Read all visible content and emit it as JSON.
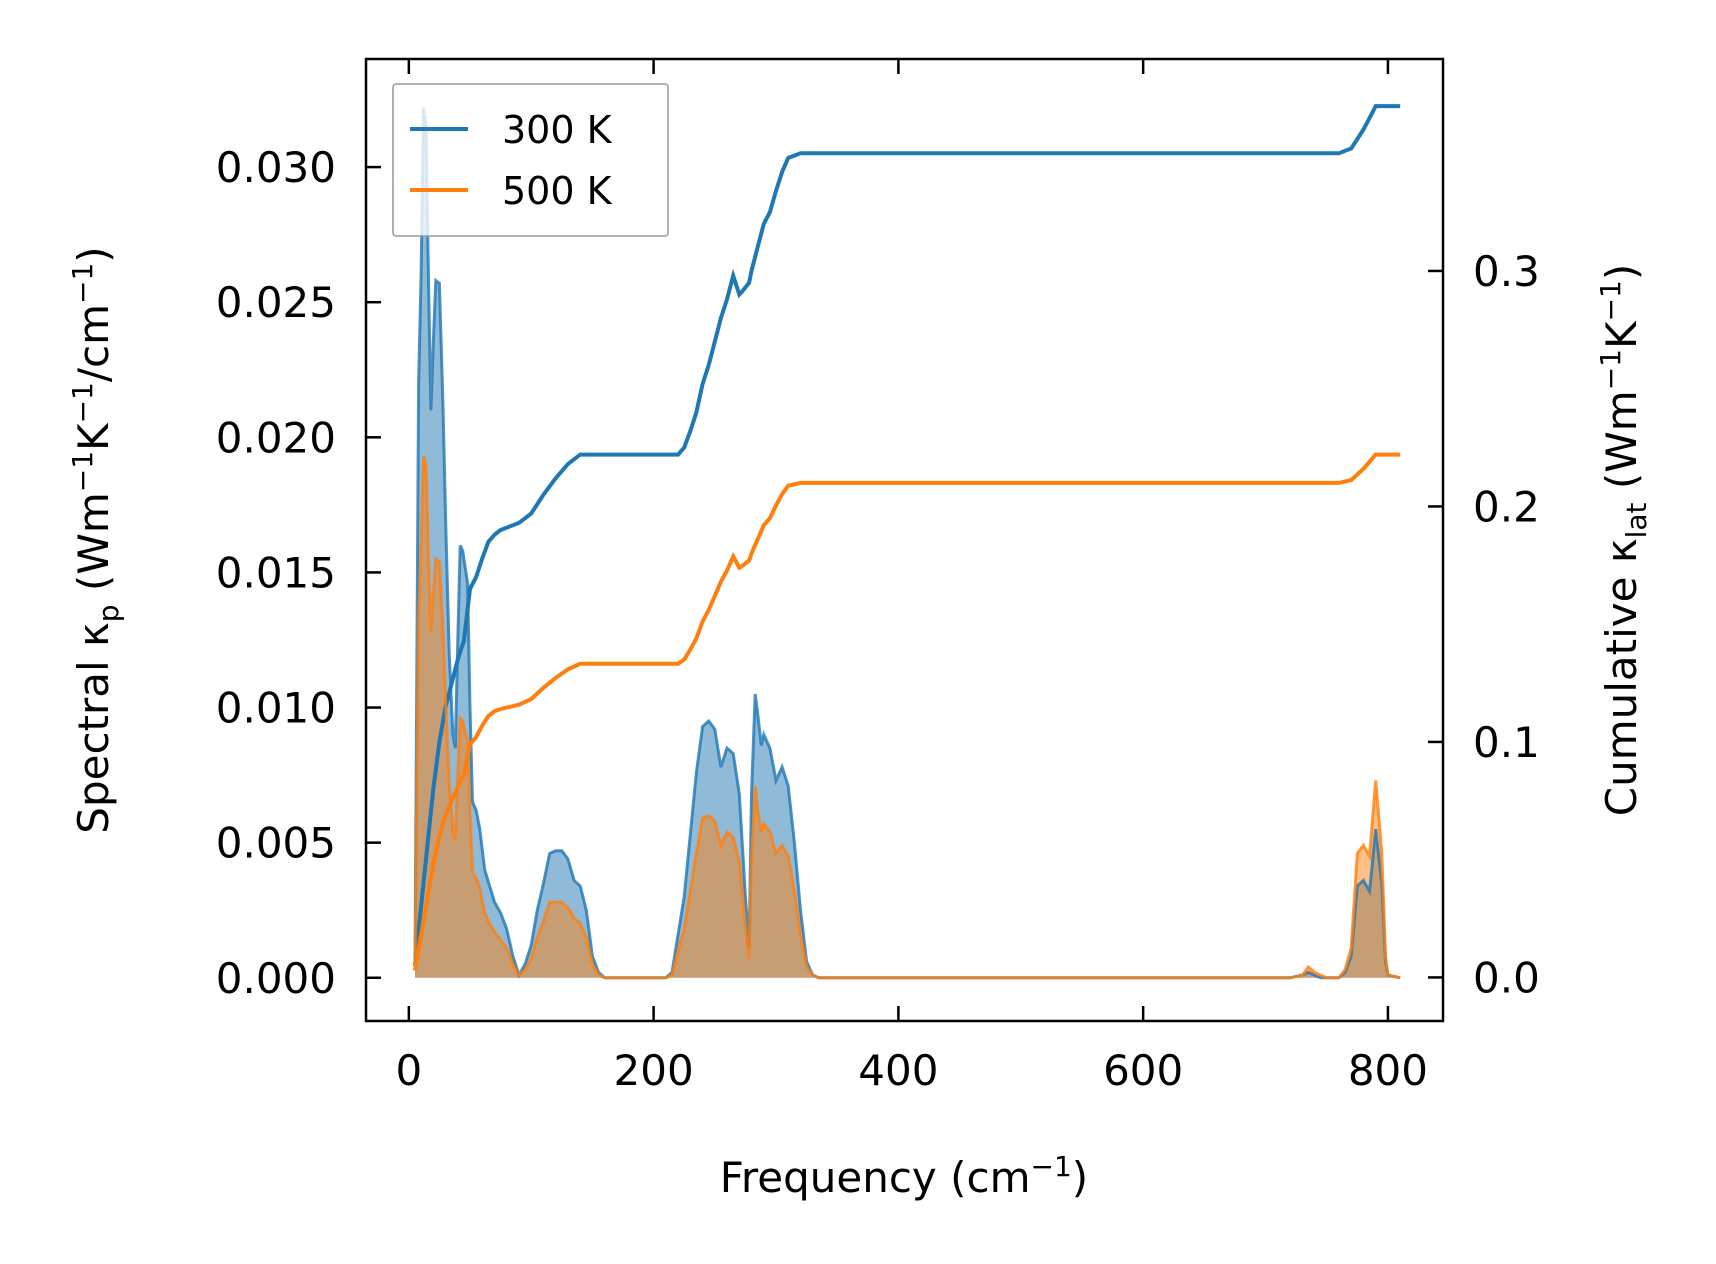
{
  "chart_data": {
    "type": "line",
    "xlabel": {
      "main": "Frequency (cm",
      "sup": "−1",
      "tail": ")"
    },
    "ylabel_left": {
      "pre": "Spectral κ",
      "sub": "p",
      "mid": " (Wm",
      "sup1": "−1",
      "k": "K",
      "sup2": "−1",
      "tail": "/cm",
      "sup3": "−1",
      "end": ")"
    },
    "ylabel_right": {
      "pre": "Cumulative κ",
      "sub": "lat",
      "mid": " (Wm",
      "sup1": "−1",
      "k": "K",
      "sup2": "−1",
      "end": ")"
    },
    "xlim": [
      -35,
      845
    ],
    "ylim_left": [
      -0.0016,
      0.034
    ],
    "ylim_right": [
      -0.0185,
      0.39
    ],
    "x_ticks": [
      0,
      200,
      400,
      600,
      800
    ],
    "x_tick_labels": [
      "0",
      "200",
      "400",
      "600",
      "800"
    ],
    "y_left_ticks": [
      0,
      0.005,
      0.01,
      0.015,
      0.02,
      0.025,
      0.03
    ],
    "y_left_tick_labels": [
      "0.000",
      "0.005",
      "0.010",
      "0.015",
      "0.020",
      "0.025",
      "0.030"
    ],
    "y_right_ticks": [
      0,
      0.1,
      0.2,
      0.3
    ],
    "y_right_tick_labels": [
      "0.0",
      "0.1",
      "0.2",
      "0.3"
    ],
    "legend": {
      "position": "upper-left",
      "entries": [
        "300 K",
        "500 K"
      ]
    },
    "grid": false,
    "series": [
      {
        "name": "300 K",
        "color": "#1f77b4",
        "spectral": {
          "x": [
            5,
            8,
            10,
            12,
            14,
            16,
            18,
            20,
            22,
            25,
            28,
            30,
            33,
            36,
            38,
            40,
            42,
            44,
            46,
            48,
            50,
            52,
            55,
            58,
            62,
            66,
            70,
            75,
            80,
            85,
            90,
            95,
            100,
            105,
            110,
            115,
            120,
            125,
            130,
            135,
            140,
            145,
            150,
            155,
            160,
            180,
            200,
            210,
            215,
            220,
            225,
            230,
            235,
            240,
            245,
            250,
            255,
            260,
            265,
            270,
            275,
            278,
            280,
            283,
            285,
            288,
            290,
            295,
            300,
            305,
            310,
            315,
            320,
            325,
            330,
            335,
            400,
            600,
            700,
            720,
            730,
            735,
            740,
            745,
            750,
            760,
            765,
            770,
            775,
            780,
            785,
            790,
            795,
            798,
            800,
            810
          ],
          "y": [
            0.0005,
            0.022,
            0.026,
            0.0322,
            0.0315,
            0.026,
            0.021,
            0.0235,
            0.0258,
            0.0257,
            0.021,
            0.017,
            0.012,
            0.009,
            0.0085,
            0.0125,
            0.016,
            0.0158,
            0.0152,
            0.0146,
            0.01,
            0.0065,
            0.0062,
            0.0055,
            0.004,
            0.0034,
            0.0028,
            0.0024,
            0.0018,
            0.0008,
            0.0001,
            0.0005,
            0.0012,
            0.0025,
            0.0035,
            0.0046,
            0.0047,
            0.0047,
            0.0044,
            0.0036,
            0.0034,
            0.0025,
            0.0008,
            0.0002,
            0,
            0,
            0,
            0,
            0.0002,
            0.0016,
            0.003,
            0.0053,
            0.0076,
            0.0093,
            0.0095,
            0.0092,
            0.0078,
            0.0085,
            0.0083,
            0.0068,
            0.003,
            0.0011,
            0.0068,
            0.0105,
            0.0098,
            0.0086,
            0.009,
            0.0085,
            0.0073,
            0.0078,
            0.0071,
            0.005,
            0.0025,
            0.0006,
            0.0001,
            0,
            0,
            0,
            0,
            0,
            0.0001,
            0.0002,
            0.0001,
            0,
            0,
            0,
            0.0002,
            0.0008,
            0.0034,
            0.0036,
            0.0032,
            0.0055,
            0.0035,
            0.0006,
            0.0001,
            0
          ]
        },
        "cumulative": {
          "x": [
            5,
            8,
            12,
            16,
            20,
            25,
            30,
            35,
            40,
            45,
            50,
            55,
            60,
            65,
            70,
            75,
            80,
            90,
            100,
            110,
            120,
            130,
            140,
            150,
            160,
            180,
            200,
            210,
            220,
            225,
            230,
            235,
            240,
            245,
            250,
            255,
            260,
            265,
            270,
            272,
            275,
            278,
            280,
            285,
            290,
            295,
            300,
            305,
            310,
            315,
            320,
            330,
            400,
            500,
            600,
            700,
            740,
            750,
            760,
            765,
            770,
            775,
            780,
            785,
            790,
            795,
            800,
            810
          ],
          "y": [
            0.005,
            0.02,
            0.04,
            0.06,
            0.08,
            0.1,
            0.115,
            0.125,
            0.135,
            0.143,
            0.165,
            0.17,
            0.178,
            0.185,
            0.188,
            0.19,
            0.191,
            0.193,
            0.197,
            0.205,
            0.212,
            0.218,
            0.222,
            0.222,
            0.222,
            0.222,
            0.222,
            0.222,
            0.222,
            0.225,
            0.232,
            0.24,
            0.252,
            0.26,
            0.27,
            0.28,
            0.288,
            0.298,
            0.29,
            0.291,
            0.293,
            0.295,
            0.3,
            0.31,
            0.32,
            0.325,
            0.334,
            0.342,
            0.348,
            0.349,
            0.35,
            0.35,
            0.35,
            0.35,
            0.35,
            0.35,
            0.35,
            0.35,
            0.35,
            0.351,
            0.352,
            0.356,
            0.36,
            0.365,
            0.37,
            0.37,
            0.37,
            0.37
          ]
        }
      },
      {
        "name": "500 K",
        "color": "#ff7f0e",
        "spectral": {
          "x": [
            5,
            8,
            10,
            12,
            14,
            16,
            18,
            20,
            22,
            25,
            28,
            30,
            33,
            36,
            38,
            40,
            42,
            44,
            46,
            48,
            50,
            52,
            55,
            58,
            62,
            66,
            70,
            75,
            80,
            85,
            90,
            95,
            100,
            105,
            110,
            115,
            120,
            125,
            130,
            135,
            140,
            145,
            150,
            155,
            160,
            180,
            200,
            210,
            215,
            220,
            225,
            230,
            235,
            240,
            245,
            250,
            255,
            260,
            265,
            270,
            275,
            278,
            280,
            283,
            285,
            288,
            290,
            295,
            300,
            305,
            310,
            315,
            320,
            325,
            330,
            335,
            400,
            600,
            700,
            720,
            730,
            735,
            740,
            745,
            750,
            760,
            765,
            770,
            775,
            780,
            785,
            790,
            795,
            798,
            800,
            810
          ],
          "y": [
            0.0003,
            0.013,
            0.016,
            0.0193,
            0.019,
            0.0156,
            0.0128,
            0.0142,
            0.0155,
            0.0154,
            0.0127,
            0.0102,
            0.0072,
            0.0054,
            0.0051,
            0.0075,
            0.0096,
            0.0095,
            0.0091,
            0.0088,
            0.006,
            0.0039,
            0.0037,
            0.0033,
            0.0024,
            0.002,
            0.0017,
            0.0014,
            0.0011,
            0.0005,
            0.0001,
            0.0003,
            0.0007,
            0.0015,
            0.0021,
            0.0028,
            0.0028,
            0.0028,
            0.0026,
            0.0022,
            0.002,
            0.0015,
            0.0005,
            0.0001,
            0,
            0,
            0,
            0,
            0.0001,
            0.001,
            0.0018,
            0.0032,
            0.0046,
            0.0059,
            0.006,
            0.0058,
            0.0049,
            0.0054,
            0.0052,
            0.0043,
            0.0019,
            0.0007,
            0.0043,
            0.0071,
            0.0062,
            0.0054,
            0.0057,
            0.0054,
            0.0046,
            0.0049,
            0.0045,
            0.0032,
            0.0016,
            0.0004,
            0.0001,
            0,
            0,
            0,
            0,
            0,
            0.0001,
            0.0004,
            0.0002,
            0.0001,
            0,
            0,
            0.0003,
            0.0011,
            0.0046,
            0.0049,
            0.0045,
            0.0073,
            0.0046,
            0.0008,
            0.0001,
            0
          ]
        },
        "cumulative": {
          "x": [
            5,
            8,
            12,
            16,
            20,
            25,
            30,
            35,
            40,
            45,
            50,
            55,
            60,
            65,
            70,
            75,
            80,
            90,
            100,
            110,
            120,
            130,
            140,
            150,
            160,
            180,
            200,
            210,
            220,
            225,
            230,
            235,
            240,
            245,
            250,
            255,
            260,
            265,
            270,
            272,
            275,
            278,
            280,
            285,
            290,
            295,
            300,
            305,
            310,
            315,
            320,
            330,
            400,
            500,
            600,
            700,
            740,
            750,
            760,
            765,
            770,
            775,
            780,
            785,
            790,
            795,
            800,
            810
          ],
          "y": [
            0.003,
            0.012,
            0.024,
            0.036,
            0.048,
            0.06,
            0.069,
            0.075,
            0.081,
            0.086,
            0.099,
            0.102,
            0.107,
            0.111,
            0.113,
            0.114,
            0.1146,
            0.1158,
            0.1182,
            0.123,
            0.1272,
            0.1308,
            0.1332,
            0.1332,
            0.1332,
            0.1332,
            0.1332,
            0.1332,
            0.1332,
            0.135,
            0.1392,
            0.144,
            0.1512,
            0.156,
            0.162,
            0.168,
            0.1728,
            0.1788,
            0.174,
            0.1746,
            0.1758,
            0.177,
            0.18,
            0.186,
            0.192,
            0.195,
            0.2004,
            0.2052,
            0.2088,
            0.2094,
            0.21,
            0.21,
            0.21,
            0.21,
            0.21,
            0.21,
            0.21,
            0.21,
            0.21,
            0.2106,
            0.2112,
            0.2136,
            0.216,
            0.219,
            0.222,
            0.222,
            0.222,
            0.222
          ]
        }
      }
    ]
  }
}
